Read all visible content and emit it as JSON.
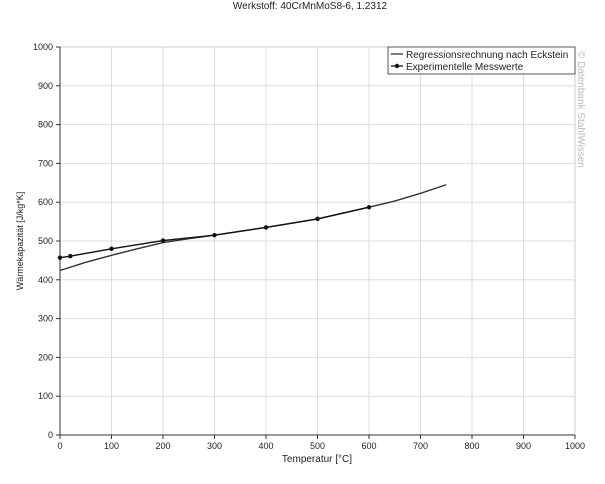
{
  "chart_data": {
    "type": "line",
    "title": "Werkstoff: 40CrMnMoS8-6, 1.2312",
    "xlabel": "Temperatur [°C]",
    "ylabel": "Wärmekapazität [J/kg*K]",
    "xlim": [
      0,
      1000
    ],
    "ylim": [
      0,
      1000
    ],
    "xticks": [
      0,
      100,
      200,
      300,
      400,
      500,
      600,
      700,
      800,
      900,
      1000
    ],
    "yticks": [
      0,
      100,
      200,
      300,
      400,
      500,
      600,
      700,
      800,
      900,
      1000
    ],
    "grid": true,
    "legend_placement": "top-right",
    "watermark": "© Datenbank StahlWissen",
    "series": [
      {
        "name": "Regressionsrechnung nach Eckstein",
        "marker": false,
        "color": "#333333",
        "x": [
          0,
          50,
          100,
          150,
          200,
          250,
          300,
          400,
          500,
          600,
          650,
          700,
          750
        ],
        "y": [
          424,
          445,
          463,
          480,
          496,
          506,
          515,
          535,
          557,
          587,
          603,
          623,
          645
        ]
      },
      {
        "name": "Experimentelle Messwerte",
        "marker": true,
        "color": "#111111",
        "x": [
          0,
          20,
          100,
          200,
          300,
          400,
          500,
          600
        ],
        "y": [
          457,
          461,
          480,
          501,
          515,
          535,
          557,
          587
        ]
      }
    ]
  }
}
